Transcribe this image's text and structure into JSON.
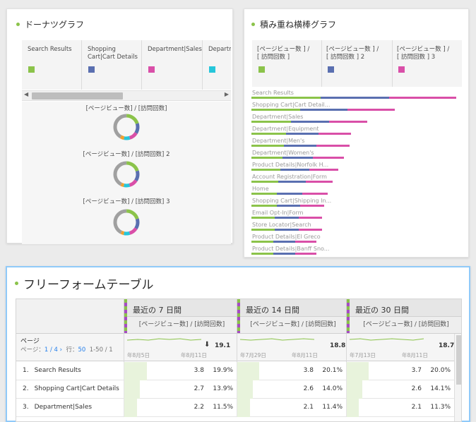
{
  "donut_panel": {
    "title": "ドーナツグラフ",
    "legend": [
      {
        "label": "Search Results",
        "color": "#8bc34a"
      },
      {
        "label": "Shopping\nCart|Cart Details",
        "color": "#5a6fb0"
      },
      {
        "label": "Department|Sales",
        "color": "#d94fa8"
      },
      {
        "label": "Departm",
        "color": "#26c6da"
      }
    ],
    "charts": [
      {
        "label": "[ページビュー数] / [訪問回数]"
      },
      {
        "label": "[ページビュー数] / [訪問回数] 2"
      },
      {
        "label": "[ページビュー数] / [訪問回数] 3"
      }
    ]
  },
  "bar_panel": {
    "title": "積み重ね横棒グラフ",
    "legend": [
      {
        "label": "[ページビュー数 ] /\n[ 訪問回数 ]",
        "color": "#8bc34a"
      },
      {
        "label": "[ページビュー数 ] /\n[ 訪問回数 ] 2",
        "color": "#5a6fb0"
      },
      {
        "label": "[ページビュー数 ] /\n[ 訪問回数 ] 3",
        "color": "#d94fa8"
      }
    ]
  },
  "chart_data": [
    {
      "type": "pie",
      "title": "[ページビュー数] / [訪問回数]",
      "series_colors": [
        "#8bc34a",
        "#5a6fb0",
        "#d94fa8",
        "#26c6da",
        "#f0a030",
        "#a0a0a0"
      ],
      "values": [
        19.9,
        13.9,
        11.5,
        8,
        5,
        41.7
      ]
    },
    {
      "type": "pie",
      "title": "[ページビュー数] / [訪問回数] 2",
      "series_colors": [
        "#8bc34a",
        "#5a6fb0",
        "#d94fa8",
        "#26c6da",
        "#f0a030",
        "#a0a0a0"
      ],
      "values": [
        20.1,
        14.0,
        11.4,
        8,
        4,
        42.5
      ]
    },
    {
      "type": "pie",
      "title": "[ページビュー数] / [訪問回数] 3",
      "series_colors": [
        "#8bc34a",
        "#5a6fb0",
        "#d94fa8",
        "#26c6da",
        "#f0a030",
        "#a0a0a0"
      ],
      "values": [
        20.0,
        14.1,
        11.3,
        8,
        4,
        42.6
      ]
    },
    {
      "type": "bar",
      "orientation": "horizontal",
      "stacked": true,
      "categories": [
        "Search Results",
        "Shopping Cart|Cart Detail...",
        "Department|Sales",
        "Department|Equipment",
        "Department|Men's",
        "Department|Women's",
        "Product Details|Norfolk H...",
        "Account Registration|Form",
        "Home",
        "Shopping Cart|Shipping In...",
        "Email Opt-In|Form",
        "Store Locator|Search",
        "Product Details|El Greco",
        "Product Details|Banff Sno..."
      ],
      "series": [
        {
          "name": "[ページビュー数 ] / [ 訪問回数 ]",
          "color": "#8bc34a",
          "values": [
            3.8,
            2.7,
            2.2,
            1.9,
            1.8,
            1.7,
            1.6,
            1.5,
            1.4,
            1.4,
            1.3,
            1.3,
            1.2,
            1.2
          ]
        },
        {
          "name": "[ページビュー数 ] / [ 訪問回数 ] 2",
          "color": "#5a6fb0",
          "values": [
            3.8,
            2.6,
            2.1,
            1.8,
            1.8,
            1.7,
            1.6,
            1.5,
            1.4,
            1.3,
            1.3,
            1.3,
            1.2,
            1.2
          ]
        },
        {
          "name": "[ページビュー数 ] / [ 訪問回数 ] 3",
          "color": "#d94fa8",
          "values": [
            3.7,
            2.6,
            2.1,
            1.8,
            1.8,
            1.7,
            1.6,
            1.5,
            1.4,
            1.3,
            1.3,
            1.3,
            1.2,
            1.2
          ]
        }
      ]
    }
  ],
  "table_panel": {
    "title": "フリーフォームテーブル",
    "dimension_label": "ページ",
    "pager": {
      "page_label": "ページ：",
      "page": "1 / 4",
      "rows_label": "行：",
      "rows": "50",
      "range": "1-50 / 1"
    },
    "columns": [
      {
        "title": "最近の 7 日間",
        "metric": "[ページビュー数] / [訪問回数]",
        "total": "19.1",
        "date_start": "年8月5日",
        "date_end": "年8月11日",
        "sorted": true
      },
      {
        "title": "最近の 14 日間",
        "metric": "[ページビュー数] / [訪問回数]",
        "total": "18.8",
        "date_start": "年7月29日",
        "date_end": "年8月11日",
        "sorted": false
      },
      {
        "title": "最近の 30 日間",
        "metric": "[ページビュー数] / [訪問回数]",
        "total": "18.7",
        "date_start": "年7月13日",
        "date_end": "年8月11日",
        "sorted": false
      }
    ],
    "rows": [
      {
        "rank": "1.",
        "name": "Search Results",
        "cells": [
          {
            "value": "3.8",
            "pct": "19.9%",
            "fill": 0.199
          },
          {
            "value": "3.8",
            "pct": "20.1%",
            "fill": 0.201
          },
          {
            "value": "3.7",
            "pct": "20.0%",
            "fill": 0.2
          }
        ]
      },
      {
        "rank": "2.",
        "name": "Shopping Cart|Cart Details",
        "cells": [
          {
            "value": "2.7",
            "pct": "13.9%",
            "fill": 0.139
          },
          {
            "value": "2.6",
            "pct": "14.0%",
            "fill": 0.14
          },
          {
            "value": "2.6",
            "pct": "14.1%",
            "fill": 0.141
          }
        ]
      },
      {
        "rank": "3.",
        "name": "Department|Sales",
        "cells": [
          {
            "value": "2.2",
            "pct": "11.5%",
            "fill": 0.115
          },
          {
            "value": "2.1",
            "pct": "11.4%",
            "fill": 0.114
          },
          {
            "value": "2.1",
            "pct": "11.3%",
            "fill": 0.113
          }
        ]
      }
    ]
  }
}
